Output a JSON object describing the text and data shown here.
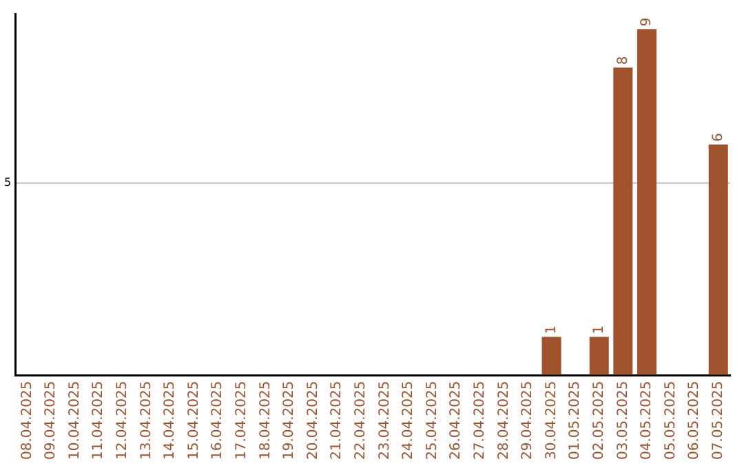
{
  "chart_data": {
    "type": "bar",
    "ylim": [
      0,
      9.4
    ],
    "categories": [
      "08.04.2025",
      "09.04.2025",
      "10.04.2025",
      "11.04.2025",
      "12.04.2025",
      "13.04.2025",
      "14.04.2025",
      "15.04.2025",
      "16.04.2025",
      "17.04.2025",
      "18.04.2025",
      "19.04.2025",
      "20.04.2025",
      "21.04.2025",
      "22.04.2025",
      "23.04.2025",
      "24.04.2025",
      "25.04.2025",
      "26.04.2025",
      "27.04.2025",
      "28.04.2025",
      "29.04.2025",
      "30.04.2025",
      "01.05.2025",
      "02.05.2025",
      "03.05.2025",
      "04.05.2025",
      "05.05.2025",
      "06.05.2025",
      "07.05.2025"
    ],
    "values": [
      null,
      null,
      null,
      null,
      null,
      null,
      null,
      null,
      null,
      null,
      null,
      null,
      null,
      null,
      null,
      null,
      null,
      null,
      null,
      null,
      null,
      null,
      1,
      null,
      1,
      8,
      9,
      null,
      null,
      6
    ],
    "yticks": [
      {
        "value": 0,
        "label": null
      },
      5
    ],
    "grid": "y",
    "value_labels": [
      null,
      null,
      null,
      null,
      null,
      null,
      null,
      null,
      null,
      null,
      null,
      null,
      null,
      null,
      null,
      null,
      null,
      null,
      null,
      null,
      null,
      null,
      "1",
      null,
      "1",
      "8",
      "9",
      null,
      null,
      "6"
    ],
    "color": "#a0522d",
    "legend": false
  }
}
